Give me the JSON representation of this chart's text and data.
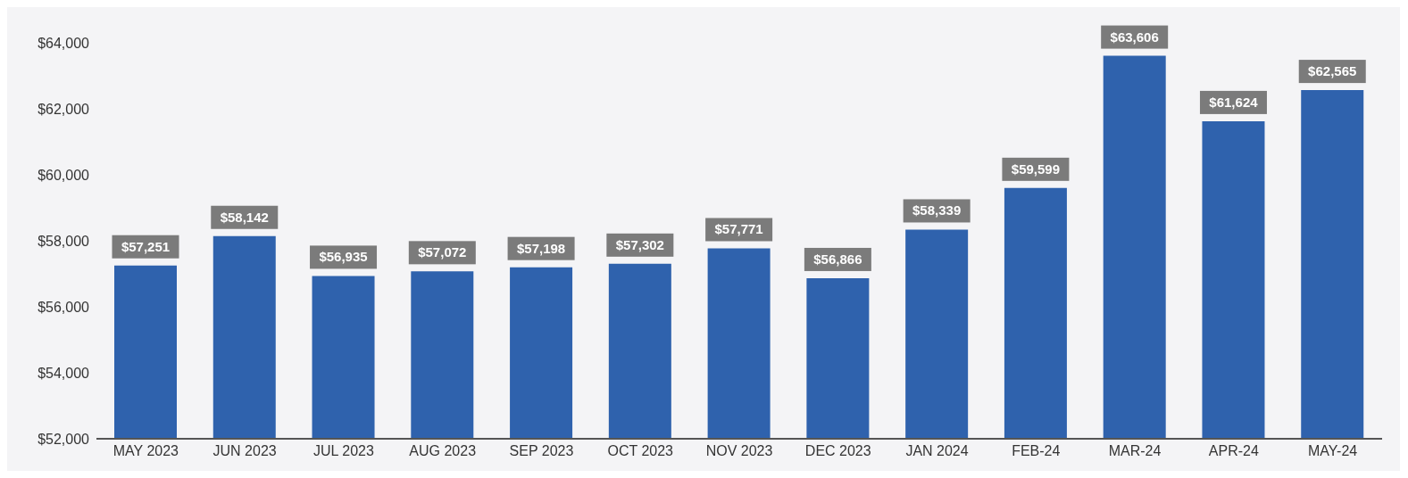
{
  "chart_data": {
    "type": "bar",
    "categories": [
      "MAY 2023",
      "JUN 2023",
      "JUL 2023",
      "AUG 2023",
      "SEP 2023",
      "OCT 2023",
      "NOV 2023",
      "DEC 2023",
      "JAN 2024",
      "FEB-24",
      "MAR-24",
      "APR-24",
      "MAY-24"
    ],
    "values": [
      57251,
      58142,
      56935,
      57072,
      57198,
      57302,
      57771,
      56866,
      58339,
      59599,
      63606,
      61624,
      62565
    ],
    "value_labels": [
      "$57,251",
      "$58,142",
      "$56,935",
      "$57,072",
      "$57,198",
      "$57,302",
      "$57,771",
      "$56,866",
      "$58,339",
      "$59,599",
      "$63,606",
      "$61,624",
      "$62,565"
    ],
    "color": "#2f62ad",
    "ylim": [
      52000,
      64000
    ],
    "yticks": [
      {
        "value": 52000,
        "label": "$52,000"
      },
      {
        "value": 54000,
        "label": "$54,000"
      },
      {
        "value": 56000,
        "label": "$56,000"
      },
      {
        "value": 58000,
        "label": "$58,000"
      },
      {
        "value": 60000,
        "label": "$60,000"
      },
      {
        "value": 62000,
        "label": "$62,000"
      },
      {
        "value": 64000,
        "label": "$64,000"
      }
    ],
    "grid": false,
    "legend": false
  }
}
